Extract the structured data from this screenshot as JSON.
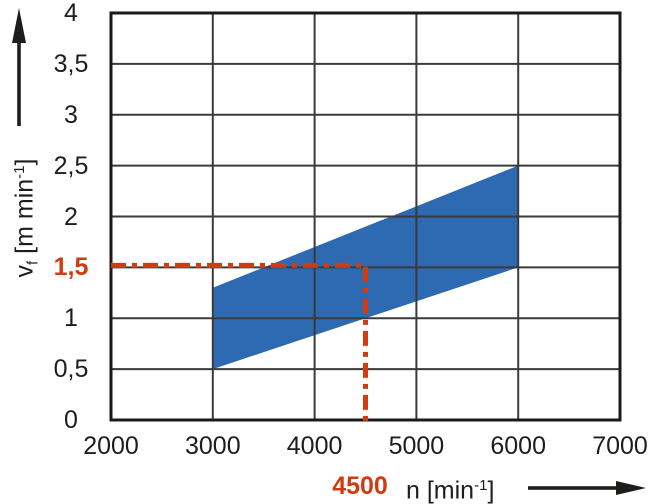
{
  "labels": {
    "y_title": {
      "base": "v",
      "sub": "f",
      "mid": " [m min",
      "sup": "-1",
      "end": "]"
    },
    "x_title": {
      "base": "n [min",
      "sup": "-1",
      "end": "]"
    }
  },
  "chart_data": {
    "type": "area",
    "title": "",
    "xlabel": "n [min^-1]",
    "ylabel": "vf [m min^-1]",
    "xlim": [
      2000,
      7000
    ],
    "ylim": [
      0,
      4
    ],
    "grid": true,
    "x_ticks": [
      {
        "value": 2000,
        "label": "2000"
      },
      {
        "value": 3000,
        "label": "3000"
      },
      {
        "value": 4000,
        "label": "4000"
      },
      {
        "value": 5000,
        "label": "5000"
      },
      {
        "value": 6000,
        "label": "6000"
      },
      {
        "value": 7000,
        "label": "7000"
      }
    ],
    "y_ticks": [
      {
        "value": 0,
        "label": "0"
      },
      {
        "value": 0.5,
        "label": "0,5"
      },
      {
        "value": 1,
        "label": "1"
      },
      {
        "value": 1.5,
        "label": "1,5",
        "highlight": true
      },
      {
        "value": 2,
        "label": "2"
      },
      {
        "value": 2.5,
        "label": "2,5"
      },
      {
        "value": 3,
        "label": "3"
      },
      {
        "value": 3.5,
        "label": "3,5"
      },
      {
        "value": 4,
        "label": "4"
      }
    ],
    "band": {
      "description": "operating range of feed rate vf over speed n",
      "color": "#2e6ab1",
      "points": [
        [
          3000,
          0.5
        ],
        [
          6000,
          1.5
        ],
        [
          6000,
          2.5
        ],
        [
          3000,
          1.3
        ]
      ]
    },
    "marker": {
      "n": 4500,
      "vf": 1.5,
      "n_label": "4500",
      "vf_label": "1,5",
      "color": "#d03b12",
      "line_style": "dash-dot"
    },
    "colors": {
      "grid": "#3a3a3a",
      "border": "#1a1a1a",
      "text": "#1d1d1b",
      "background": "#ffffff"
    },
    "legend": null
  }
}
